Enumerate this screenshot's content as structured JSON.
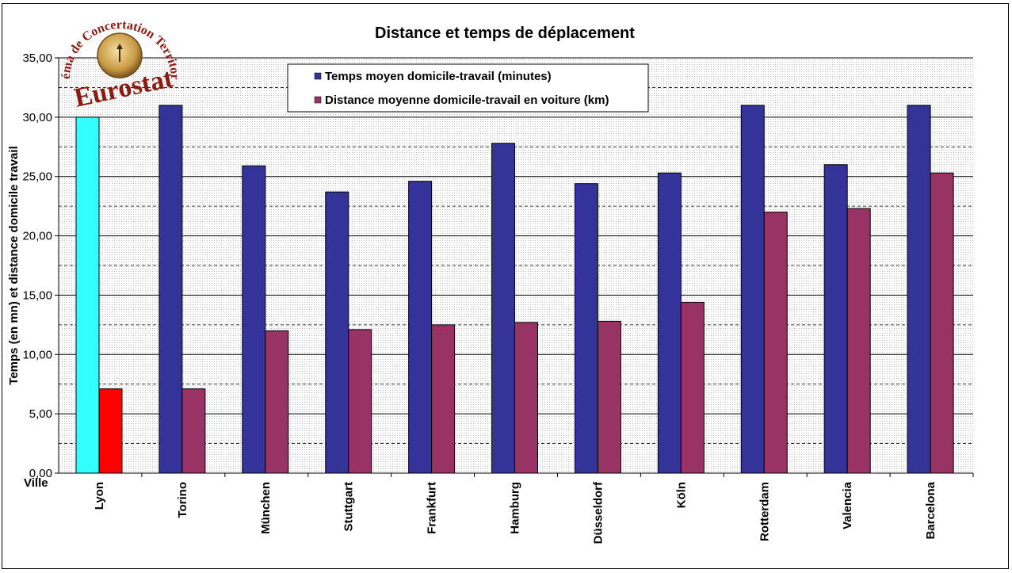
{
  "chart_data": {
    "type": "bar",
    "title": "Distance et temps de déplacement",
    "xlabel": "Ville",
    "ylabel": "Temps (en mn) et distance domicile travail",
    "ylim": [
      0,
      35
    ],
    "yticks": [
      "0,00",
      "5,00",
      "10,00",
      "15,00",
      "20,00",
      "25,00",
      "30,00",
      "35,00"
    ],
    "grid": true,
    "legend_position": "top",
    "categories": [
      "Lyon",
      "Torino",
      "München",
      "Stuttgart",
      "Frankfurt",
      "Hamburg",
      "Düsseldorf",
      "Köln",
      "Rotterdam",
      "Valencia",
      "Barcelona"
    ],
    "series": [
      {
        "name": "Temps moyen domicile-travail (minutes)",
        "color": "#333399",
        "highlight_color": "#33ffff",
        "values": [
          30.0,
          31.0,
          25.9,
          23.7,
          24.6,
          27.8,
          24.4,
          25.3,
          31.0,
          26.0,
          31.0
        ]
      },
      {
        "name": "Distance moyenne domicile-travail en voiture (km)",
        "color": "#993366",
        "highlight_color": "#ff0000",
        "values": [
          7.1,
          7.1,
          12.0,
          12.1,
          12.5,
          12.7,
          12.8,
          14.4,
          22.0,
          22.3,
          25.3
        ]
      }
    ],
    "highlighted_category": "Lyon"
  },
  "logo": {
    "arc_text": "Schéma de Concertation Territoriale",
    "name": "Eurostat",
    "icon": "compass-arrow-icon"
  }
}
